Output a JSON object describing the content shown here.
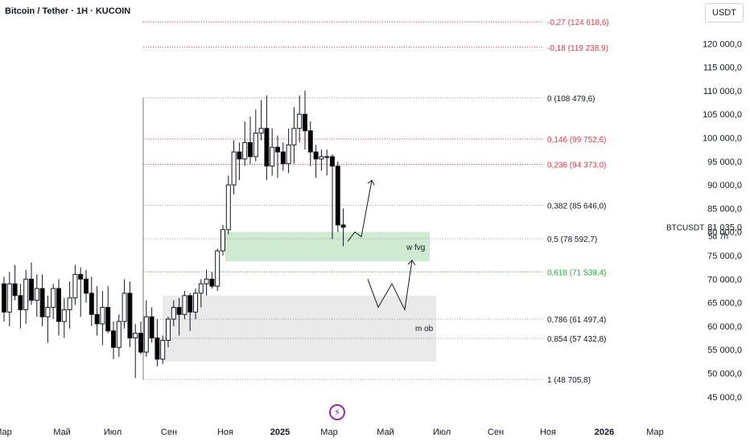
{
  "header": {
    "title": "Bitcoin / Tether · 1H · KUCOIN",
    "currency": "USDT"
  },
  "chart_data": {
    "type": "candlestick",
    "symbol": "BTCUSDT",
    "last_price": "81 035,0",
    "countdown": "5d 7h",
    "ylim": [
      43000,
      128000
    ],
    "y_ticks": [
      45000,
      50000,
      55000,
      60000,
      65000,
      70000,
      75000,
      80000,
      85000,
      90000,
      95000,
      100000,
      105000,
      110000,
      115000,
      120000
    ],
    "y_tick_labels": [
      "45 000,0",
      "50 000,0",
      "55 000,0",
      "60 000,0",
      "65 000,0",
      "70 000,0",
      "75 000,0",
      "80 000,0",
      "85 000,0",
      "90 000,0",
      "95 000,0",
      "100 000,0",
      "105 000,0",
      "110 000,0",
      "115 000,0",
      "120 000,0"
    ],
    "x_ticks": [
      "Мар",
      "Май",
      "Июл",
      "Сен",
      "Ноя",
      "2025",
      "Мар",
      "Май",
      "Июл",
      "Сен",
      "Ноя",
      "2026",
      "Мар"
    ],
    "fib_levels": [
      {
        "label": "-0,27 (124 618,6)",
        "price": 124618.6,
        "color": "#f23645"
      },
      {
        "label": "-0,18 (119 238,9)",
        "price": 119238.9,
        "color": "#f23645"
      },
      {
        "label": "0 (108 479,6)",
        "price": 108479.6,
        "color": "#131722"
      },
      {
        "label": "0,146 (99 752,6)",
        "price": 99752.6,
        "color": "#f23645"
      },
      {
        "label": "0,236 (94 373,0)",
        "price": 94373.0,
        "color": "#f23645"
      },
      {
        "label": "0,382 (85 646,0)",
        "price": 85646.0,
        "color": "#131722"
      },
      {
        "label": "0,5 (78 592,7)",
        "price": 78592.7,
        "color": "#131722"
      },
      {
        "label": "0,618 (71 539,4)",
        "price": 71539.4,
        "color": "#22ab35"
      },
      {
        "label": "0,786 (61 497,4)",
        "price": 61497.4,
        "color": "#131722"
      },
      {
        "label": "0,854 (57 432,8)",
        "price": 57432.8,
        "color": "#131722"
      },
      {
        "label": "1 (48 705,8)",
        "price": 48705.8,
        "color": "#131722"
      }
    ],
    "zones": [
      {
        "label": "w fvg",
        "top": 80000,
        "bottom": 73800,
        "color": "#c8e6c9"
      },
      {
        "label": "m ob",
        "top": 66500,
        "bottom": 52500,
        "color": "#e6e6e6"
      }
    ],
    "candles": [
      [
        69000,
        70500,
        61000,
        63000
      ],
      [
        63000,
        71500,
        60000,
        69000
      ],
      [
        69000,
        73000,
        65500,
        66500
      ],
      [
        66500,
        69000,
        59500,
        63500
      ],
      [
        63500,
        72000,
        60500,
        70000
      ],
      [
        70000,
        73500,
        64500,
        65500
      ],
      [
        65500,
        71000,
        62000,
        68000
      ],
      [
        68000,
        71000,
        60000,
        62000
      ],
      [
        62000,
        66500,
        56500,
        64000
      ],
      [
        64000,
        69000,
        61500,
        68000
      ],
      [
        68000,
        70000,
        58000,
        61000
      ],
      [
        61000,
        66000,
        57500,
        63500
      ],
      [
        63500,
        69500,
        59500,
        66000
      ],
      [
        66000,
        73000,
        64500,
        71000
      ],
      [
        71000,
        72500,
        62000,
        70000
      ],
      [
        70000,
        72000,
        65000,
        67000
      ],
      [
        67000,
        70500,
        60000,
        62500
      ],
      [
        62500,
        68500,
        58000,
        60500
      ],
      [
        60500,
        67500,
        56000,
        64000
      ],
      [
        64000,
        68500,
        58500,
        59000
      ],
      [
        59000,
        61000,
        53000,
        55500
      ],
      [
        55500,
        62500,
        53500,
        61000
      ],
      [
        61000,
        70000,
        59500,
        67000
      ],
      [
        67000,
        69500,
        55500,
        57500
      ],
      [
        57500,
        60500,
        49000,
        58500
      ],
      [
        58500,
        61000,
        54000,
        54500
      ],
      [
        54500,
        65500,
        53500,
        62000
      ],
      [
        62000,
        64000,
        56500,
        57500
      ],
      [
        57500,
        61500,
        51500,
        53000
      ],
      [
        53000,
        58000,
        52000,
        57000
      ],
      [
        57000,
        62000,
        55500,
        61500
      ],
      [
        61500,
        65500,
        60000,
        64000
      ],
      [
        64000,
        66000,
        58000,
        62500
      ],
      [
        62500,
        67500,
        61500,
        66500
      ],
      [
        66500,
        67000,
        59000,
        63000
      ],
      [
        63000,
        68000,
        61500,
        67000
      ],
      [
        67000,
        70000,
        64000,
        69000
      ],
      [
        69000,
        72000,
        66500,
        70000
      ],
      [
        70000,
        71500,
        68000,
        68500
      ],
      [
        68500,
        76500,
        67500,
        76000
      ],
      [
        76000,
        81500,
        75000,
        80500
      ],
      [
        80500,
        92000,
        79500,
        90000
      ],
      [
        90000,
        99500,
        88000,
        97000
      ],
      [
        97000,
        99000,
        91000,
        95500
      ],
      [
        95500,
        103500,
        94000,
        99000
      ],
      [
        99000,
        104500,
        94500,
        96000
      ],
      [
        96000,
        106000,
        95000,
        101000
      ],
      [
        101000,
        108000,
        99500,
        102000
      ],
      [
        102000,
        109000,
        91000,
        94000
      ],
      [
        94000,
        102000,
        92000,
        98000
      ],
      [
        98000,
        100500,
        91500,
        97000
      ],
      [
        97000,
        99000,
        93000,
        94500
      ],
      [
        94500,
        102000,
        92500,
        98500
      ],
      [
        98500,
        106500,
        94500,
        102000
      ],
      [
        102000,
        109000,
        99000,
        105000
      ],
      [
        105000,
        110000,
        97500,
        101500
      ],
      [
        101500,
        103500,
        94000,
        97000
      ],
      [
        97000,
        98500,
        91500,
        95500
      ],
      [
        95500,
        97500,
        93000,
        96000
      ],
      [
        96000,
        97500,
        92000,
        96000
      ],
      [
        96000,
        96500,
        78500,
        94000
      ],
      [
        94000,
        95000,
        80000,
        81500
      ],
      [
        81500,
        85000,
        77000,
        81000
      ]
    ],
    "annotations": {
      "up_path": [
        [
          78000,
          0
        ],
        [
          80000,
          1
        ],
        [
          79000,
          2
        ],
        [
          91000,
          3
        ]
      ],
      "w_path": [
        [
          70000,
          0
        ],
        [
          64000,
          1
        ],
        [
          69000,
          2
        ],
        [
          63500,
          3
        ],
        [
          74000,
          4
        ]
      ]
    }
  }
}
